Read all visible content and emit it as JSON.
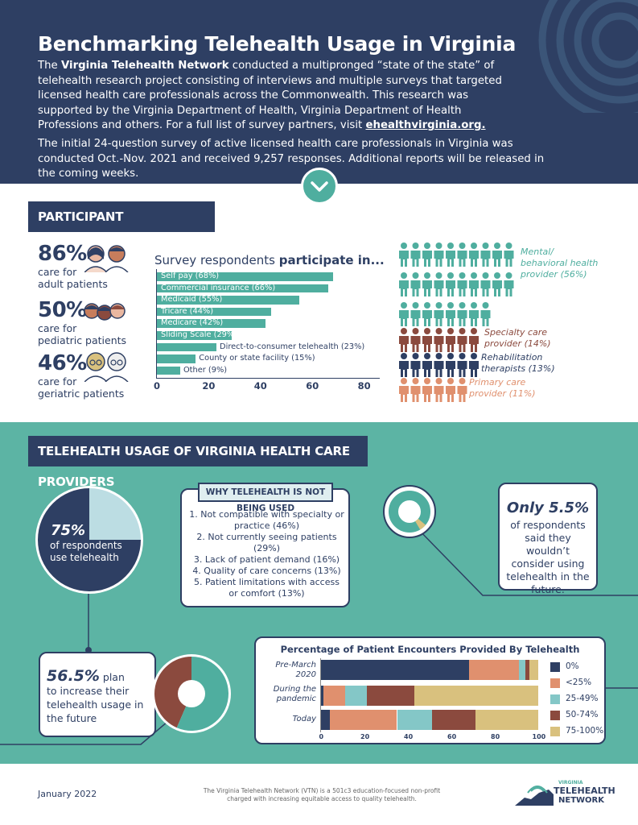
{
  "header": {
    "title": "Benchmarking Telehealth Usage in Virginia",
    "p1_bold": "Virginia Telehealth Network",
    "p1_pre": "The ",
    "p1_post": " conducted a multipronged “state of the state” of telehealth research project consisting of interviews and multiple surveys that targeted licensed health care professionals across the Commonwealth. This research was supported by the Virginia Department of Health, Virginia Department of Health Professions and others. For a full list of survey partners, visit ",
    "p1_link": "ehealthvirginia.org.",
    "p2": "The initial 24-question survey of active licensed health care professionals in Virginia was conducted Oct.-Nov. 2021 and received 9,257 responses. Additional reports will be released in the coming weeks."
  },
  "demographics": {
    "heading": "PARTICIPANT DEMOGRAPHICS",
    "stats": [
      {
        "value": "86%",
        "line1": "care for",
        "line2": "adult patients"
      },
      {
        "value": "50%",
        "line1": "care for",
        "line2": "pediatric patients"
      },
      {
        "value": "46%",
        "line1": "care for",
        "line2": "geriatric patients"
      }
    ],
    "survey_title_pre": "Survey respondents ",
    "survey_title_bold": "participate in...",
    "people_labels": [
      {
        "text": "Mental/ behavioral health provider (56%)",
        "color": "#4fae9f"
      },
      {
        "text": "Specialty care provider (14%)",
        "color": "#8b4a3e"
      },
      {
        "text": "Rehabilitation therapists (13%)",
        "color": "#2e3f63"
      },
      {
        "text": "Primary care provider (11%)",
        "color": "#e0906e"
      }
    ],
    "people_icon": "person-icon"
  },
  "chart_data": [
    {
      "type": "bar",
      "orientation": "horizontal",
      "title": "Survey respondents participate in...",
      "categories": [
        "Self pay (68%)",
        "Commercial insurance (66%)",
        "Medicaid (55%)",
        "Tricare (44%)",
        "Medicare (42%)",
        "Sliding Scale (29%)",
        "Direct-to-consumer telehealth (23%)",
        "County or state facility (15%)",
        "Other (9%)"
      ],
      "values": [
        68,
        66,
        55,
        44,
        42,
        29,
        23,
        15,
        9
      ],
      "xticks": [
        "0",
        "20",
        "40",
        "60",
        "80"
      ],
      "xlim": [
        0,
        85
      ],
      "color": "#4fae9f"
    },
    {
      "type": "bar",
      "orientation": "horizontal",
      "stacked": true,
      "title": "Percentage of Patient Encounters Provided By Telehealth",
      "categories": [
        "Pre-March 2020",
        "During the pandemic",
        "Today"
      ],
      "series": [
        {
          "name": "0%",
          "color": "#2e3f63",
          "values": [
            68,
            1,
            4
          ]
        },
        {
          "name": "<25%",
          "color": "#e0906e",
          "values": [
            23,
            10,
            31
          ]
        },
        {
          "name": "25-49%",
          "color": "#84c7c7",
          "values": [
            3,
            10,
            16
          ]
        },
        {
          "name": "50-74%",
          "color": "#8b4a3e",
          "values": [
            2,
            22,
            20
          ]
        },
        {
          "name": "75-100%",
          "color": "#d9c17e",
          "values": [
            4,
            57,
            29
          ]
        }
      ],
      "xticks": [
        "0",
        "20",
        "40",
        "60",
        "80",
        "100"
      ],
      "xlim": [
        0,
        100
      ]
    }
  ],
  "usage": {
    "heading": "TELEHEALTH USAGE OF VIRGINIA HEALTH CARE PROVIDERS",
    "pie_pct": "75%",
    "pie_text": "of respondents use telehealth",
    "pie_value": 75,
    "why_title": "WHY TELEHEALTH IS NOT BEING USED",
    "why_items": [
      "1. Not compatible with specialty or practice (46%)",
      "2. Not currently seeing patients (29%)",
      "3. Lack of patient demand (16%)",
      "4. Quality of care concerns (13%)",
      "5. Patient limitations with access or comfort (13%)"
    ],
    "only_big": "Only 5.5%",
    "only_text": "of respondents said they wouldn’t consider using telehealth in the future.",
    "only_value": 5.5,
    "plan_big": "56.5%",
    "plan_text1": " plan",
    "plan_text2": "to increase their telehealth usage in the future",
    "plan_value": 56.5
  },
  "footer": {
    "date": "January 2022",
    "note": "The Virginia Telehealth Network (VTN) is a 501c3 education-focused non-profit charged with increasing equitable access to quality telehealth.",
    "logo_small": "VIRGINIA",
    "logo_main": "TELEHEALTH",
    "logo_sub": "NETWORK"
  }
}
